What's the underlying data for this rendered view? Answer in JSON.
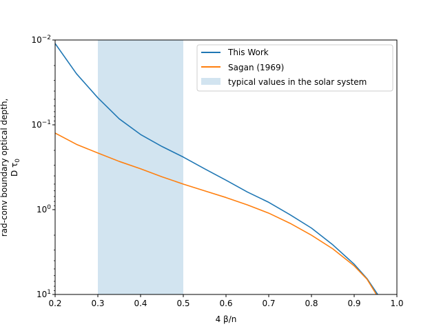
{
  "chart_data": {
    "type": "line",
    "xlabel": "4 β/n",
    "ylabel_line1": "rad-conv boundary optical depth,",
    "ylabel_line2_prefix": "D τ",
    "ylabel_line2_sub": "0",
    "xlim": [
      0.2,
      1.0
    ],
    "ylim": [
      0.01,
      10
    ],
    "yscale": "log",
    "y_inverted": true,
    "xticks": [
      "0.2",
      "0.3",
      "0.4",
      "0.5",
      "0.6",
      "0.7",
      "0.8",
      "0.9",
      "1.0"
    ],
    "xtick_values": [
      0.2,
      0.3,
      0.4,
      0.5,
      0.6,
      0.7,
      0.8,
      0.9,
      1.0
    ],
    "yticks": [
      {
        "value": 0.01,
        "base": "10",
        "exp": "−2"
      },
      {
        "value": 0.1,
        "base": "10",
        "exp": "−1"
      },
      {
        "value": 1,
        "base": "10",
        "exp": "0"
      },
      {
        "value": 10,
        "base": "10",
        "exp": "1"
      }
    ],
    "legend_position": "top-right",
    "shaded_region": {
      "label": "typical values in the solar system",
      "x_range": [
        0.3,
        0.5
      ],
      "color": "#1f77b4",
      "alpha": 0.2
    },
    "series": [
      {
        "name": "This Work",
        "color": "#1f77b4",
        "x": [
          0.2,
          0.25,
          0.3,
          0.35,
          0.4,
          0.45,
          0.5,
          0.55,
          0.6,
          0.65,
          0.7,
          0.75,
          0.8,
          0.85,
          0.9,
          0.93,
          0.955
        ],
        "y": [
          0.011,
          0.025,
          0.048,
          0.085,
          0.13,
          0.18,
          0.24,
          0.33,
          0.45,
          0.62,
          0.82,
          1.15,
          1.65,
          2.6,
          4.4,
          6.5,
          10
        ]
      },
      {
        "name": "Sagan (1969)",
        "color": "#ff7f0e",
        "x": [
          0.2,
          0.25,
          0.3,
          0.35,
          0.4,
          0.45,
          0.5,
          0.55,
          0.6,
          0.65,
          0.7,
          0.75,
          0.8,
          0.85,
          0.9,
          0.93,
          0.952
        ],
        "y": [
          0.125,
          0.17,
          0.215,
          0.27,
          0.33,
          0.41,
          0.5,
          0.6,
          0.72,
          0.88,
          1.1,
          1.45,
          2.0,
          2.9,
          4.6,
          6.6,
          10
        ]
      }
    ]
  }
}
